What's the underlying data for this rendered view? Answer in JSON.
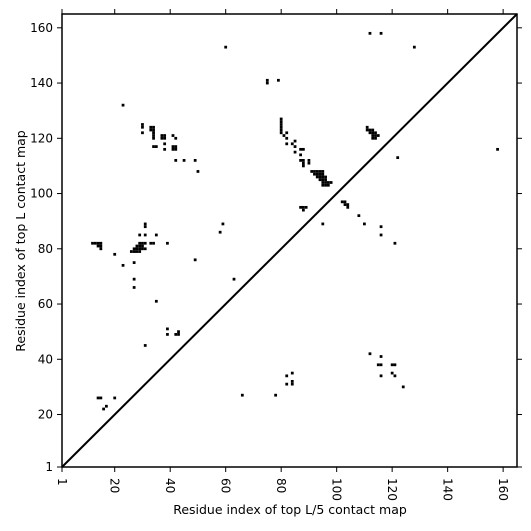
{
  "chart_data": {
    "type": "scatter",
    "title": "",
    "xlabel": "Residue index of top L/5 contact map",
    "ylabel": "Residue index of top L contact map",
    "xlim": [
      1,
      165
    ],
    "ylim": [
      1,
      165
    ],
    "x_ticks": [
      1,
      20,
      40,
      60,
      80,
      100,
      120,
      140,
      160
    ],
    "y_ticks": [
      1,
      20,
      40,
      60,
      80,
      100,
      120,
      140,
      160
    ],
    "x_tick_rotation": -90,
    "diagonal": true,
    "grid": false,
    "marker": "square",
    "colors": {
      "marks": "#000000",
      "diagonal": "#000000",
      "background": "#ffffff"
    },
    "series": [
      {
        "part": "upper-left (top L contacts)",
        "points": [
          [
            12,
            82
          ],
          [
            13,
            82
          ],
          [
            14,
            82
          ],
          [
            15,
            82
          ],
          [
            15,
            81
          ],
          [
            15,
            80
          ],
          [
            14,
            81
          ],
          [
            20,
            78
          ],
          [
            23,
            74
          ],
          [
            23,
            132
          ],
          [
            26,
            79
          ],
          [
            27,
            79
          ],
          [
            28,
            79
          ],
          [
            29,
            79
          ],
          [
            27,
            80
          ],
          [
            28,
            80
          ],
          [
            29,
            80
          ],
          [
            28,
            81
          ],
          [
            29,
            81
          ],
          [
            30,
            81
          ],
          [
            29,
            82
          ],
          [
            30,
            82
          ],
          [
            31,
            82
          ],
          [
            30,
            80
          ],
          [
            31,
            80
          ],
          [
            27,
            75
          ],
          [
            27,
            69
          ],
          [
            27,
            66
          ],
          [
            29,
            85
          ],
          [
            31,
            85
          ],
          [
            31,
            88
          ],
          [
            31,
            89
          ],
          [
            33,
            82
          ],
          [
            34,
            82
          ],
          [
            35,
            85
          ],
          [
            35,
            61
          ],
          [
            31,
            45
          ],
          [
            39,
            82
          ],
          [
            39,
            51
          ],
          [
            39,
            49
          ],
          [
            30,
            124
          ],
          [
            30,
            125
          ],
          [
            30,
            122
          ],
          [
            33,
            124
          ],
          [
            34,
            124
          ],
          [
            33,
            123
          ],
          [
            34,
            123
          ],
          [
            34,
            122
          ],
          [
            34,
            121
          ],
          [
            34,
            120
          ],
          [
            34,
            117
          ],
          [
            35,
            117
          ],
          [
            37,
            121
          ],
          [
            38,
            121
          ],
          [
            37,
            120
          ],
          [
            38,
            120
          ],
          [
            38,
            118
          ],
          [
            38,
            116
          ],
          [
            41,
            121
          ],
          [
            42,
            120
          ],
          [
            41,
            117
          ],
          [
            42,
            117
          ],
          [
            41,
            116
          ],
          [
            42,
            116
          ],
          [
            42,
            112
          ],
          [
            45,
            112
          ],
          [
            49,
            112
          ],
          [
            50,
            108
          ],
          [
            49,
            76
          ],
          [
            42,
            49
          ],
          [
            43,
            49
          ],
          [
            43,
            50
          ],
          [
            58,
            86
          ],
          [
            59,
            89
          ],
          [
            60,
            153
          ],
          [
            63,
            69
          ],
          [
            75,
            141
          ],
          [
            75,
            140
          ],
          [
            79,
            141
          ],
          [
            80,
            127
          ],
          [
            80,
            126
          ],
          [
            80,
            125
          ],
          [
            80,
            124
          ],
          [
            80,
            123
          ],
          [
            80,
            122
          ],
          [
            81,
            121
          ],
          [
            82,
            122
          ],
          [
            82,
            120
          ],
          [
            82,
            118
          ],
          [
            84,
            118
          ],
          [
            85,
            119
          ],
          [
            85,
            117
          ],
          [
            85,
            115
          ],
          [
            87,
            116
          ],
          [
            88,
            116
          ],
          [
            87,
            114
          ],
          [
            88,
            112
          ],
          [
            87,
            112
          ],
          [
            88,
            111
          ],
          [
            88,
            110
          ],
          [
            90,
            112
          ],
          [
            90,
            111
          ],
          [
            91,
            108
          ],
          [
            92,
            108
          ],
          [
            93,
            108
          ],
          [
            94,
            108
          ],
          [
            95,
            108
          ],
          [
            92,
            107
          ],
          [
            93,
            107
          ],
          [
            94,
            107
          ],
          [
            95,
            107
          ],
          [
            93,
            106
          ],
          [
            94,
            106
          ],
          [
            95,
            106
          ],
          [
            96,
            106
          ],
          [
            94,
            105
          ],
          [
            95,
            105
          ],
          [
            96,
            105
          ],
          [
            95,
            104
          ],
          [
            96,
            104
          ],
          [
            97,
            104
          ],
          [
            98,
            104
          ],
          [
            95,
            103
          ],
          [
            96,
            103
          ],
          [
            97,
            103
          ],
          [
            87,
            95
          ],
          [
            88,
            95
          ],
          [
            89,
            95
          ],
          [
            88,
            94
          ],
          [
            95,
            89
          ],
          [
            102,
            97
          ],
          [
            103,
            97
          ],
          [
            103,
            96
          ],
          [
            104,
            96
          ],
          [
            104,
            95
          ],
          [
            108,
            92
          ],
          [
            110,
            89
          ],
          [
            116,
            88
          ],
          [
            116,
            85
          ],
          [
            121,
            82
          ],
          [
            111,
            124
          ],
          [
            111,
            123
          ],
          [
            112,
            123
          ],
          [
            113,
            123
          ],
          [
            112,
            122
          ],
          [
            113,
            122
          ],
          [
            114,
            122
          ],
          [
            113,
            121
          ],
          [
            114,
            121
          ],
          [
            115,
            121
          ],
          [
            113,
            120
          ],
          [
            114,
            120
          ],
          [
            112,
            158
          ],
          [
            116,
            158
          ],
          [
            122,
            113
          ],
          [
            128,
            153
          ],
          [
            158,
            116
          ]
        ]
      },
      {
        "part": "lower-right (top L/5 contacts)",
        "points": [
          [
            14,
            26
          ],
          [
            15,
            26
          ],
          [
            16,
            22
          ],
          [
            17,
            23
          ],
          [
            20,
            26
          ],
          [
            66,
            27
          ],
          [
            78,
            27
          ],
          [
            82,
            34
          ],
          [
            82,
            31
          ],
          [
            84,
            32
          ],
          [
            84,
            31
          ],
          [
            84,
            35
          ],
          [
            112,
            42
          ],
          [
            116,
            41
          ],
          [
            115,
            38
          ],
          [
            116,
            38
          ],
          [
            116,
            34
          ],
          [
            120,
            38
          ],
          [
            121,
            38
          ],
          [
            120,
            35
          ],
          [
            121,
            34
          ],
          [
            124,
            30
          ]
        ]
      }
    ]
  }
}
